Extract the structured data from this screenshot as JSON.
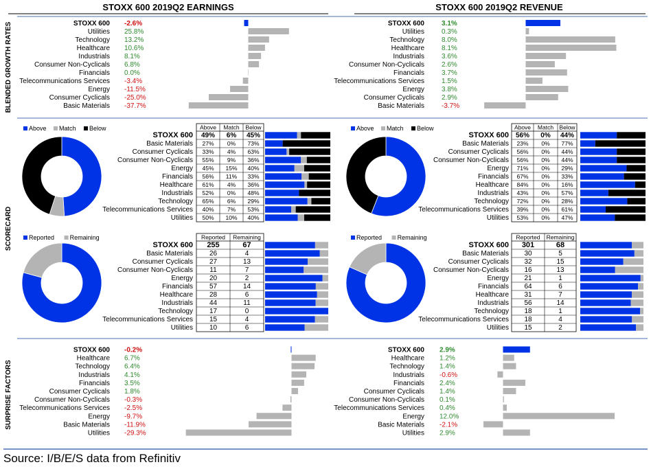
{
  "titles": {
    "earnings": "STOXX 600 2019Q2 EARNINGS",
    "revenue": "STOXX 600 2019Q2 REVENUE"
  },
  "section_labels": {
    "growth": "BLENDED GROWTH RATES",
    "scorecard": "SCORECARD",
    "surprise": "SURPRISE FACTORS"
  },
  "source": "Source: I/B/E/S data from Refinitiv",
  "legends": {
    "abm": [
      {
        "label": "Above",
        "color": "#0033e6"
      },
      {
        "label": "Match",
        "color": "#b4b4b4"
      },
      {
        "label": "Below",
        "color": "#000000"
      }
    ],
    "rr": [
      {
        "label": "Reported",
        "color": "#0033e6"
      },
      {
        "label": "Remaining",
        "color": "#b4b4b4"
      }
    ]
  },
  "table_headers": {
    "abm": [
      "Above",
      "Match",
      "Below"
    ],
    "rr": [
      "Reported",
      "Remaining"
    ]
  },
  "chart_data": [
    {
      "id": "growth_earnings",
      "type": "bar",
      "title": "STOXX 600 2019Q2 EARNINGS",
      "section": "BLENDED GROWTH RATES",
      "categories": [
        "STOXX 600",
        "Utilities",
        "Technology",
        "Healthcare",
        "Industrials",
        "Consumer Non-Cyclicals",
        "Financials",
        "Telecommunications Services",
        "Energy",
        "Consumer Cyclicals",
        "Basic Materials"
      ],
      "values": [
        -2.6,
        25.8,
        13.2,
        10.6,
        8.1,
        6.8,
        0.0,
        -3.4,
        -11.5,
        -25.0,
        -37.7
      ],
      "labels": [
        "-2.6%",
        "25.8%",
        "13.2%",
        "10.6%",
        "8.1%",
        "6.8%",
        "0.0%",
        "-3.4%",
        "-11.5%",
        "-25.0%",
        "-37.7%"
      ],
      "colors": {
        "total": "#0033e6",
        "sector": "#b4b4b4",
        "positive_text": "#2e8b2e",
        "negative_text": "#d01010"
      }
    },
    {
      "id": "growth_revenue",
      "type": "bar",
      "title": "STOXX 600 2019Q2 REVENUE",
      "section": "BLENDED GROWTH RATES",
      "categories": [
        "STOXX 600",
        "Utilities",
        "Technology",
        "Healthcare",
        "Industrials",
        "Consumer Non-Cyclicals",
        "Financials",
        "Telecommunications Services",
        "Energy",
        "Consumer Cyclicals",
        "Basic Materials"
      ],
      "values": [
        3.1,
        0.3,
        8.0,
        8.1,
        3.6,
        2.6,
        3.7,
        1.5,
        3.8,
        2.9,
        -3.7
      ],
      "labels": [
        "3.1%",
        "0.3%",
        "8.0%",
        "8.1%",
        "3.6%",
        "2.6%",
        "3.7%",
        "1.5%",
        "3.8%",
        "2.9%",
        "-3.7%"
      ]
    },
    {
      "id": "scorecard_earnings_abm",
      "type": "table",
      "section": "SCORECARD",
      "categories": [
        "STOXX 600",
        "Basic Materials",
        "Consumer Cyclicals",
        "Consumer Non-Cyclicals",
        "Energy",
        "Financials",
        "Healthcare",
        "Industrials",
        "Technology",
        "Telecommunications Services",
        "Utilities"
      ],
      "above": [
        "49%",
        "27%",
        "33%",
        "55%",
        "45%",
        "56%",
        "61%",
        "52%",
        "65%",
        "40%",
        "50%"
      ],
      "match": [
        "6%",
        "0%",
        "4%",
        "9%",
        "15%",
        "11%",
        "4%",
        "0%",
        "6%",
        "7%",
        "10%"
      ],
      "below": [
        "45%",
        "73%",
        "63%",
        "36%",
        "40%",
        "33%",
        "36%",
        "48%",
        "29%",
        "53%",
        "40%"
      ],
      "pie": [
        49,
        6,
        45
      ]
    },
    {
      "id": "scorecard_revenue_abm",
      "type": "table",
      "section": "SCORECARD",
      "categories": [
        "STOXX 600",
        "Basic Materials",
        "Consumer Cyclicals",
        "Consumer Non-Cyclicals",
        "Energy",
        "Financials",
        "Healthcare",
        "Industrials",
        "Technology",
        "Telecommunications Services",
        "Utilities"
      ],
      "above": [
        "56%",
        "23%",
        "56%",
        "56%",
        "71%",
        "67%",
        "84%",
        "43%",
        "72%",
        "39%",
        "53%"
      ],
      "match": [
        "0%",
        "0%",
        "0%",
        "0%",
        "0%",
        "0%",
        "0%",
        "0%",
        "0%",
        "0%",
        "0%"
      ],
      "below": [
        "44%",
        "77%",
        "44%",
        "44%",
        "29%",
        "33%",
        "16%",
        "57%",
        "28%",
        "61%",
        "47%"
      ],
      "pie": [
        56,
        0,
        44
      ]
    },
    {
      "id": "scorecard_earnings_rr",
      "type": "table",
      "section": "SCORECARD",
      "categories": [
        "STOXX 600",
        "Basic Materials",
        "Consumer Cyclicals",
        "Consumer Non-Cyclicals",
        "Energy",
        "Financials",
        "Healthcare",
        "Industrials",
        "Technology",
        "Telecommunications Services",
        "Utilities"
      ],
      "reported": [
        "255",
        "26",
        "27",
        "11",
        "20",
        "57",
        "28",
        "44",
        "17",
        "15",
        "10"
      ],
      "remaining": [
        "67",
        "4",
        "13",
        "7",
        "2",
        "14",
        "6",
        "11",
        "0",
        "4",
        "6"
      ]
    },
    {
      "id": "scorecard_revenue_rr",
      "type": "table",
      "section": "SCORECARD",
      "categories": [
        "STOXX 600",
        "Basic Materials",
        "Consumer Cyclicals",
        "Consumer Non-Cyclicals",
        "Energy",
        "Financials",
        "Healthcare",
        "Industrials",
        "Technology",
        "Telecommunications Services",
        "Utilities"
      ],
      "reported": [
        "301",
        "30",
        "32",
        "16",
        "21",
        "64",
        "31",
        "56",
        "18",
        "18",
        "15"
      ],
      "remaining": [
        "68",
        "5",
        "15",
        "13",
        "1",
        "6",
        "7",
        "14",
        "1",
        "4",
        "2"
      ]
    },
    {
      "id": "surprise_earnings",
      "type": "bar",
      "section": "SURPRISE FACTORS",
      "categories": [
        "STOXX 600",
        "Healthcare",
        "Technology",
        "Industrials",
        "Financials",
        "Consumer Cyclicals",
        "Consumer Non-Cyclicals",
        "Telecommunications Services",
        "Energy",
        "Basic Materials",
        "Utilities"
      ],
      "values": [
        -0.2,
        6.7,
        6.4,
        4.1,
        3.5,
        1.8,
        -0.3,
        -2.5,
        -9.7,
        -11.9,
        -29.3
      ],
      "labels": [
        "-0.2%",
        "6.7%",
        "6.4%",
        "4.1%",
        "3.5%",
        "1.8%",
        "-0.3%",
        "-2.5%",
        "-9.7%",
        "-11.9%",
        "-29.3%"
      ]
    },
    {
      "id": "surprise_revenue",
      "type": "bar",
      "section": "SURPRISE FACTORS",
      "categories": [
        "STOXX 600",
        "Healthcare",
        "Technology",
        "Industrials",
        "Financials",
        "Consumer Cyclicals",
        "Consumer Non-Cyclicals",
        "Telecommunications Services",
        "Energy",
        "Basic Materials",
        "Utilities"
      ],
      "values": [
        2.9,
        1.2,
        1.4,
        -0.6,
        2.4,
        1.4,
        0.1,
        0.4,
        12.0,
        -2.1,
        2.9
      ],
      "labels": [
        "2.9%",
        "1.2%",
        "1.4%",
        "-0.6%",
        "2.4%",
        "1.4%",
        "0.1%",
        "0.4%",
        "12.0%",
        "-2.1%",
        "2.9%"
      ]
    }
  ]
}
